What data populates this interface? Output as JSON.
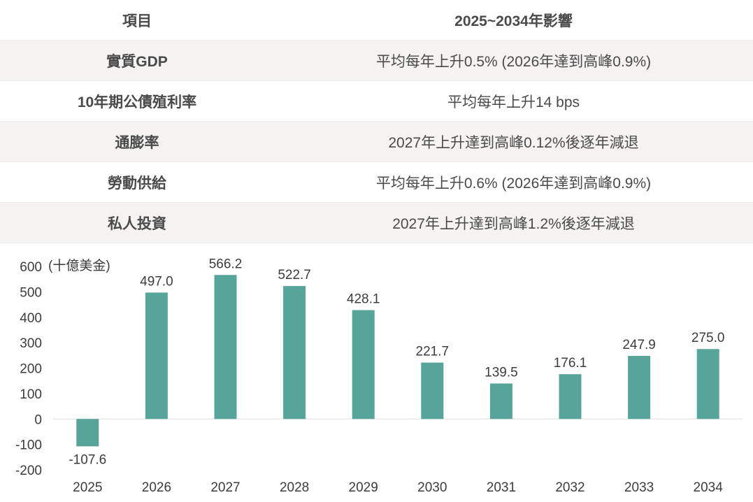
{
  "table": {
    "header": {
      "item": "項目",
      "impact": "2025~2034年影響"
    },
    "rows": [
      {
        "item": "實質GDP",
        "impact": "平均每年上升0.5% (2026年達到高峰0.9%)"
      },
      {
        "item": "10年期公債殖利率",
        "impact": "平均每年上升14 bps"
      },
      {
        "item": "通膨率",
        "impact": "2027年上升達到高峰0.12%後逐年減退"
      },
      {
        "item": "勞動供給",
        "impact": "平均每年上升0.6% (2026年達到高峰0.9%)"
      },
      {
        "item": "私人投資",
        "impact": "2027年上升達到高峰1.2%後逐年減退"
      }
    ]
  },
  "colors": {
    "bar": "#57a49a",
    "row_alt": "#f4f3f1",
    "text": "#4a4a4a"
  },
  "chart_data": {
    "type": "bar",
    "unit_label": "(十億美金)",
    "categories": [
      "2025",
      "2026",
      "2027",
      "2028",
      "2029",
      "2030",
      "2031",
      "2032",
      "2033",
      "2034"
    ],
    "values": [
      -107.6,
      497.0,
      566.2,
      522.7,
      428.1,
      221.7,
      139.5,
      176.1,
      247.9,
      275.0
    ],
    "value_labels": [
      "-107.6",
      "497.0",
      "566.2",
      "522.7",
      "428.1",
      "221.7",
      "139.5",
      "176.1",
      "247.9",
      "275.0"
    ],
    "yticks": [
      "600",
      "500",
      "400",
      "300",
      "200",
      "100",
      "0",
      "-100",
      "-200"
    ],
    "ylim": [
      -200,
      600
    ],
    "grid": false,
    "legend": "none"
  }
}
